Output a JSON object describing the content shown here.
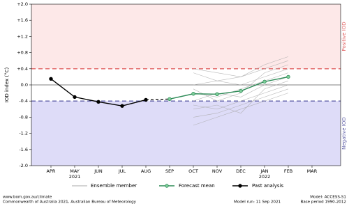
{
  "chart_data": {
    "type": "line",
    "y_label": "IOD index (°C)",
    "categories": [
      "APR",
      "MAY",
      "JUN",
      "JUL",
      "AUG",
      "SEP",
      "OCT",
      "NOV",
      "DEC",
      "JAN",
      "FEB",
      "MAR"
    ],
    "category_years": [
      null,
      "2021",
      null,
      null,
      null,
      null,
      null,
      null,
      null,
      "2022",
      null,
      null
    ],
    "ylim": [
      -2.0,
      2.0
    ],
    "yticks": [
      {
        "value": 2.0,
        "label": "+2.0"
      },
      {
        "value": 1.6,
        "label": "+1.6"
      },
      {
        "value": 1.2,
        "label": "+1.2"
      },
      {
        "value": 0.8,
        "label": "+0.8"
      },
      {
        "value": 0.4,
        "label": "+0.4"
      },
      {
        "value": 0.0,
        "label": "0.0"
      },
      {
        "value": -0.4,
        "label": "-0.4"
      },
      {
        "value": -0.8,
        "label": "-0.8"
      },
      {
        "value": -1.2,
        "label": "-1.2"
      },
      {
        "value": -1.6,
        "label": "-1.6"
      },
      {
        "value": -2.0,
        "label": "-2.0"
      }
    ],
    "positive_threshold": {
      "value": 0.4,
      "label": "Positive IOD",
      "color": "#e06060",
      "fill": "#fde8e8"
    },
    "negative_threshold": {
      "value": -0.4,
      "label": "Negative IOD",
      "color": "#6060a8",
      "fill": "#dedcf8"
    },
    "ensemble": {
      "name": "Ensemble member",
      "color": "#a8a8a8",
      "members": [
        [
          null,
          null,
          null,
          null,
          null,
          null,
          -0.2,
          -0.3,
          -0.1,
          0.1,
          0.3,
          null
        ],
        [
          null,
          null,
          null,
          null,
          null,
          null,
          -0.5,
          -0.6,
          -0.4,
          -0.2,
          0.0,
          null
        ],
        [
          null,
          null,
          null,
          null,
          null,
          null,
          0.0,
          0.1,
          0.2,
          0.4,
          0.6,
          null
        ],
        [
          null,
          null,
          null,
          null,
          null,
          null,
          -0.8,
          -0.7,
          -0.5,
          -0.3,
          -0.1,
          null
        ],
        [
          null,
          null,
          null,
          null,
          null,
          null,
          0.3,
          0.1,
          0.0,
          0.2,
          0.4,
          null
        ],
        [
          null,
          null,
          null,
          null,
          null,
          null,
          -0.4,
          -0.2,
          -0.3,
          0.0,
          0.2,
          null
        ],
        [
          null,
          null,
          null,
          null,
          null,
          null,
          -1.0,
          -0.8,
          -0.6,
          -0.4,
          -0.2,
          null
        ],
        [
          null,
          null,
          null,
          null,
          null,
          null,
          -0.1,
          -0.4,
          -0.2,
          0.3,
          0.5,
          null
        ],
        [
          null,
          null,
          null,
          null,
          null,
          null,
          0.4,
          0.3,
          0.2,
          0.5,
          0.7,
          null
        ],
        [
          null,
          null,
          null,
          null,
          null,
          null,
          -0.6,
          -0.5,
          -0.7,
          -0.1,
          0.1,
          null
        ]
      ]
    },
    "series": [
      {
        "name": "Forecast mean",
        "color": "#2e8b57",
        "marker_fill": "#7fcf9a",
        "values": [
          null,
          null,
          null,
          null,
          null,
          -0.35,
          -0.22,
          -0.23,
          -0.15,
          0.08,
          0.2,
          null
        ]
      },
      {
        "name": "Past analysis",
        "color": "#000000",
        "marker_fill": "#000000",
        "values": [
          0.15,
          -0.3,
          -0.42,
          -0.52,
          -0.37,
          null,
          null,
          null,
          null,
          null,
          null,
          null
        ]
      }
    ],
    "footer": {
      "left": [
        "www.bom.gov.au/climate",
        "Commonwealth of Australia 2021, Australian Bureau of Meteorology"
      ],
      "middle": "Model run: 11 Sep 2021",
      "right": [
        "Model: ACCESS-S1",
        "Base period 1990-2012"
      ]
    }
  }
}
